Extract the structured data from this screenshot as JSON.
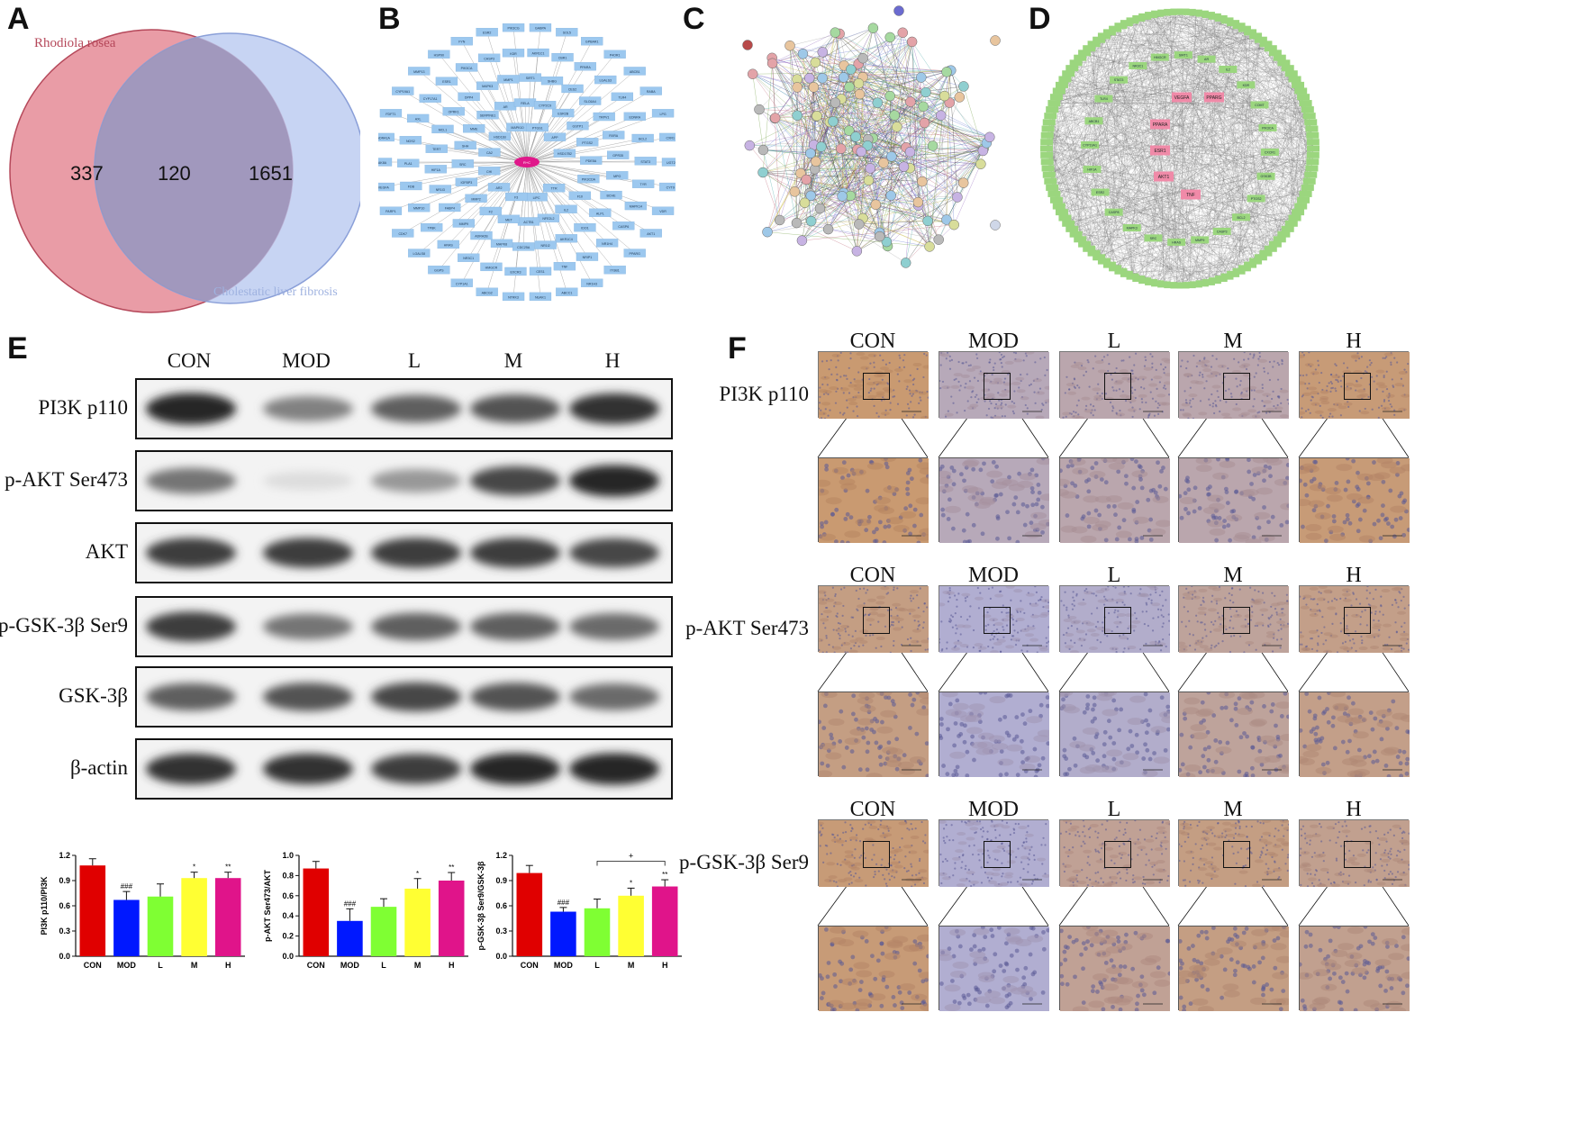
{
  "panels": {
    "A": {
      "letter": "A",
      "set1_label": "Rhodiola rosea",
      "set2_label": "Cholestatic liver fibrosis",
      "only1": "337",
      "both": "120",
      "only2": "1651",
      "colors": {
        "set1": "#e58b97",
        "set2": "#b9c9f0"
      }
    },
    "B": {
      "letter": "B",
      "center_label": "R+C",
      "nodes": [
        "UGT2B7",
        "CYT9",
        "VDR",
        "AKT1",
        "PPARG",
        "ITGB1",
        "NR1H3",
        "ABCC1",
        "NUAK1",
        "NTRK3",
        "ABCG2",
        "CYP1A1",
        "GGPS",
        "LGALS8",
        "CDK7",
        "PARP1",
        "VEGFA",
        "MAK8A",
        "ADRA1A",
        "FDFT1",
        "CYP19A1",
        "MMP13",
        "HSP90",
        "FYN",
        "ESR2",
        "PIK3CG",
        "GABPA",
        "SOL5",
        "GPBAR1",
        "P4OR1",
        "ABCB1",
        "RABA",
        "LPG",
        "CXR1",
        "TYR",
        "MAPK14",
        "CASP6",
        "NR1H4",
        "NRIP1",
        "TNF",
        "CES1",
        "EXCR3",
        "HMGCR",
        "NR3C1",
        "HRAS",
        "TP8K",
        "MMP10",
        "FDB",
        "PLA1",
        "NOS2",
        "AXL",
        "CYP17A1",
        "ESR1",
        "PIK3CA",
        "CASP3",
        "KDR",
        "AKR1C1",
        "CBR1",
        "PPARA",
        "LGALS3",
        "TLR4",
        "EDNRA",
        "BCL2",
        "STAT3",
        "BCHE",
        "ALPL",
        "IDO1",
        "AKR1C4",
        "NR1I2",
        "CDC25A",
        "MAPK8",
        "ADRA2B",
        "MMP9",
        "FABP4",
        "NR1I3",
        "HIF1A",
        "TERT",
        "MCL1",
        "OPRK1",
        "DPP4",
        "MAPK3",
        "MMP1",
        "SIRT1",
        "SHBG",
        "CES2",
        "SLC6A4",
        "TRPV1",
        "RXRA",
        "GPR35",
        "MPO",
        "F10",
        "IL2",
        "NFE2L2",
        "ACTB1",
        "MET",
        "F2",
        "MMP2",
        "IGFBP3",
        "SRC",
        "SHH",
        "MME",
        "SERPINE1",
        "AR",
        "RELA",
        "CYP2C9",
        "ESR2B",
        "GSTP1",
        "PTGS2",
        "PDE5A",
        "PIK3CDA",
        "TTR",
        "LIPC",
        "F3",
        "AR2",
        "CHI",
        "CA2",
        "HSD11B",
        "MAPK10",
        "PTGS1",
        "APP",
        "HSD17B2"
      ]
    },
    "C": {
      "letter": "C"
    },
    "D": {
      "letter": "D",
      "hubs": [
        "VEGFA",
        "PPARG",
        "PPARA",
        "ESR1",
        "AKT1",
        "TNF"
      ],
      "inner": [
        "GSK3B",
        "PTGS2",
        "BCL2",
        "CASP3",
        "MMP9",
        "HRAS",
        "SRC",
        "MAPK3",
        "CASP8",
        "ESR2",
        "HIF1A",
        "CYP19A1",
        "ABCB1",
        "TLR4",
        "STAT3",
        "NR3C1",
        "HMGCR",
        "SIRT1",
        "AR",
        "IL2",
        "KDR",
        "COMT",
        "PIK3CA",
        "CXCR1"
      ],
      "outer_count": 130
    },
    "E": {
      "letter": "E",
      "lanes": [
        "CON",
        "MOD",
        "L",
        "M",
        "H"
      ],
      "rows": [
        {
          "label": "PI3K p110",
          "intensity": [
            0.95,
            0.55,
            0.7,
            0.75,
            0.9
          ]
        },
        {
          "label": "p-AKT Ser473",
          "intensity": [
            0.6,
            0.15,
            0.45,
            0.8,
            0.95
          ]
        },
        {
          "label": "AKT",
          "intensity": [
            0.85,
            0.85,
            0.85,
            0.85,
            0.8
          ]
        },
        {
          "label": "p-GSK-3β Ser9",
          "intensity": [
            0.85,
            0.6,
            0.7,
            0.7,
            0.65
          ]
        },
        {
          "label": "GSK-3β",
          "intensity": [
            0.7,
            0.75,
            0.8,
            0.75,
            0.65
          ]
        },
        {
          "label": "β-actin",
          "intensity": [
            0.9,
            0.9,
            0.85,
            0.95,
            0.95
          ]
        }
      ]
    },
    "F": {
      "letter": "F",
      "columns": [
        "CON",
        "MOD",
        "L",
        "M",
        "H"
      ],
      "rows": [
        {
          "label": "PI3K p110",
          "stain": [
            0.85,
            0.25,
            0.35,
            0.35,
            0.8
          ]
        },
        {
          "label": "p-AKT Ser473",
          "stain": [
            0.7,
            0.05,
            0.1,
            0.5,
            0.65
          ]
        },
        {
          "label": "p-GSK-3β Ser9",
          "stain": [
            0.8,
            0.05,
            0.55,
            0.7,
            0.6
          ]
        }
      ]
    }
  },
  "chart_data": [
    {
      "type": "bar",
      "categories": [
        "CON",
        "MOD",
        "L",
        "M",
        "H"
      ],
      "values": [
        1.08,
        0.67,
        0.71,
        0.93,
        0.93
      ],
      "errors": [
        0.08,
        0.1,
        0.15,
        0.07,
        0.07
      ],
      "significance": [
        "",
        "###",
        "",
        "*",
        "**"
      ],
      "ylabel": "PI3K p110/PI3K",
      "ylim": [
        0,
        1.2
      ],
      "yticks": [
        "0.0",
        "0.3",
        "0.6",
        "0.9",
        "1.2"
      ],
      "tick_values": [
        0,
        0.3,
        0.6,
        0.9,
        1.2
      ],
      "colors": [
        "#e00000",
        "#0018ff",
        "#7fff33",
        "#ffff33",
        "#e0148a"
      ]
    },
    {
      "type": "bar",
      "categories": [
        "CON",
        "MOD",
        "L",
        "M",
        "H"
      ],
      "values": [
        0.87,
        0.35,
        0.49,
        0.67,
        0.75
      ],
      "errors": [
        0.07,
        0.12,
        0.08,
        0.1,
        0.08
      ],
      "significance": [
        "",
        "###",
        "",
        "*",
        "**"
      ],
      "ylabel": "p-AKT Ser473/AKT",
      "ylim": [
        0,
        1.0
      ],
      "yticks": [
        "0.0",
        "0.2",
        "0.4",
        "0.6",
        "0.8",
        "1.0"
      ],
      "tick_values": [
        0,
        0.2,
        0.4,
        0.6,
        0.8,
        1.0
      ],
      "colors": [
        "#e00000",
        "#0018ff",
        "#7fff33",
        "#ffff33",
        "#e0148a"
      ]
    },
    {
      "type": "bar",
      "categories": [
        "CON",
        "MOD",
        "L",
        "M",
        "H"
      ],
      "values": [
        0.99,
        0.53,
        0.57,
        0.72,
        0.83
      ],
      "errors": [
        0.09,
        0.05,
        0.11,
        0.09,
        0.08
      ],
      "significance": [
        "",
        "###",
        "",
        "*",
        "**"
      ],
      "bracket": {
        "from": "L",
        "to": "H",
        "label": "+"
      },
      "ylabel": "p-GSK-3β Ser9/GSK-3β",
      "ylim": [
        0,
        1.2
      ],
      "yticks": [
        "0.0",
        "0.3",
        "0.6",
        "0.9",
        "1.2"
      ],
      "tick_values": [
        0,
        0.3,
        0.6,
        0.9,
        1.2
      ],
      "colors": [
        "#e00000",
        "#0018ff",
        "#7fff33",
        "#ffff33",
        "#e0148a"
      ]
    }
  ]
}
